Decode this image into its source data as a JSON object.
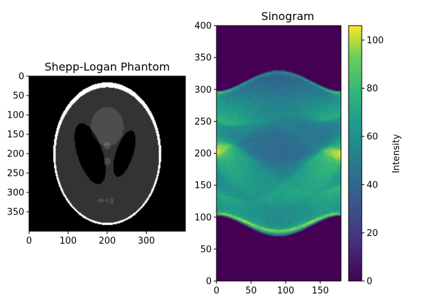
{
  "chart_data": [
    {
      "type": "image",
      "title": "Shepp-Logan Phantom",
      "colormap": "gray",
      "xlim": [
        0,
        400
      ],
      "ylim": [
        400,
        0
      ],
      "xticks": [
        0,
        100,
        200,
        300
      ],
      "yticks": [
        0,
        50,
        100,
        150,
        200,
        250,
        300,
        350
      ],
      "phantom_ellipses": [
        {
          "x0": 0,
          "y0": 0,
          "a": 0.69,
          "b": 0.92,
          "theta": 0,
          "value": 1.0
        },
        {
          "x0": 0,
          "y0": -0.0184,
          "a": 0.6624,
          "b": 0.874,
          "theta": 0,
          "value": -0.8
        },
        {
          "x0": 0.22,
          "y0": 0,
          "a": 0.11,
          "b": 0.31,
          "theta": -18,
          "value": -0.2
        },
        {
          "x0": -0.22,
          "y0": 0,
          "a": 0.16,
          "b": 0.41,
          "theta": 18,
          "value": -0.2
        },
        {
          "x0": 0,
          "y0": 0.35,
          "a": 0.21,
          "b": 0.25,
          "theta": 0,
          "value": 0.1
        },
        {
          "x0": 0,
          "y0": 0.1,
          "a": 0.046,
          "b": 0.046,
          "theta": 0,
          "value": 0.1
        },
        {
          "x0": 0,
          "y0": -0.1,
          "a": 0.046,
          "b": 0.046,
          "theta": 0,
          "value": 0.1
        },
        {
          "x0": -0.08,
          "y0": -0.605,
          "a": 0.046,
          "b": 0.023,
          "theta": 0,
          "value": 0.1
        },
        {
          "x0": 0,
          "y0": -0.605,
          "a": 0.023,
          "b": 0.023,
          "theta": 0,
          "value": 0.1
        },
        {
          "x0": 0.06,
          "y0": -0.605,
          "a": 0.023,
          "b": 0.046,
          "theta": 0,
          "value": 0.1
        }
      ]
    },
    {
      "type": "heatmap",
      "title": "Sinogram",
      "colormap": "viridis",
      "xlim": [
        0,
        180
      ],
      "ylim": [
        0,
        400
      ],
      "xticks": [
        0,
        50,
        100,
        150
      ],
      "yticks": [
        0,
        50,
        100,
        150,
        200,
        250,
        300,
        350,
        400
      ],
      "colorbar": {
        "label": "Intensity",
        "range": [
          0,
          106
        ],
        "ticks": [
          0,
          20,
          40,
          60,
          80,
          100
        ]
      }
    }
  ]
}
